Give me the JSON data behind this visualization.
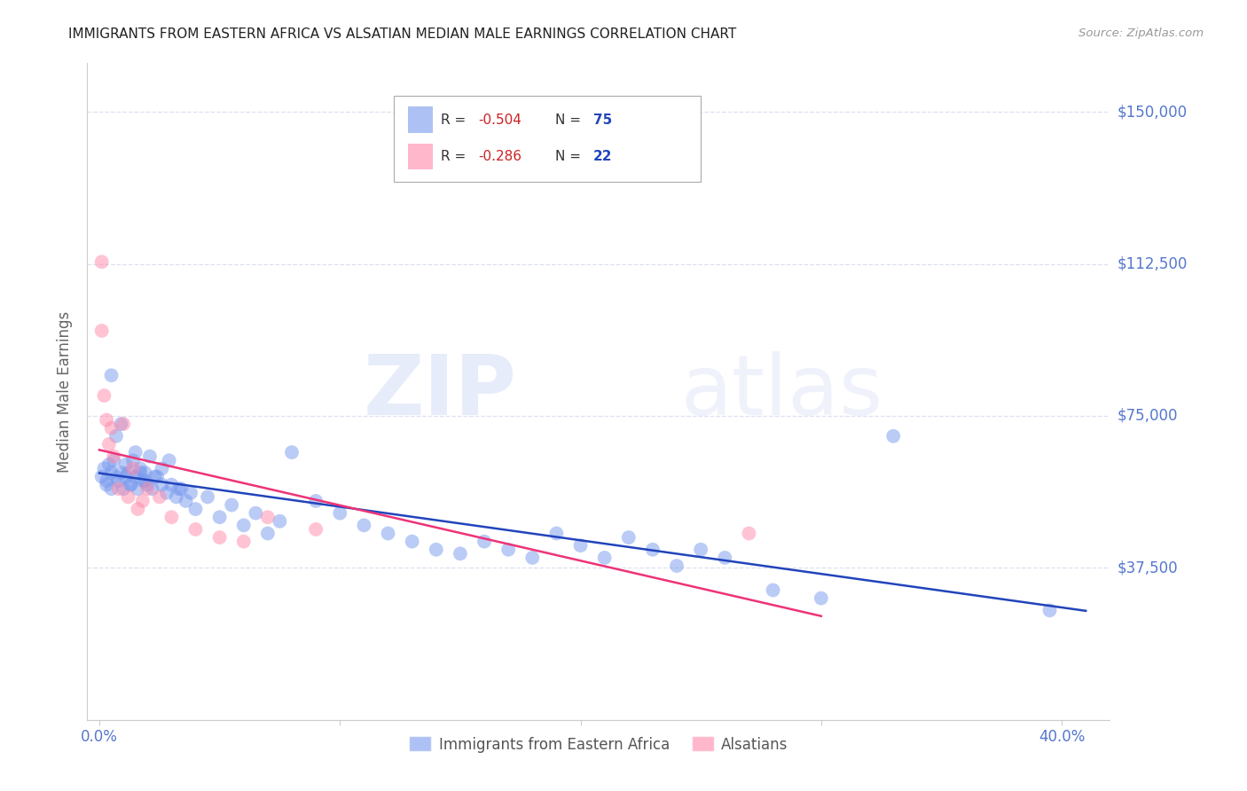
{
  "title": "IMMIGRANTS FROM EASTERN AFRICA VS ALSATIAN MEDIAN MALE EARNINGS CORRELATION CHART",
  "source": "Source: ZipAtlas.com",
  "ylabel": "Median Male Earnings",
  "ylim": [
    0,
    162000
  ],
  "xlim": [
    -0.005,
    0.42
  ],
  "background_color": "#ffffff",
  "grid_color": "#dde0f0",
  "blue_color": "#7799ee",
  "pink_color": "#ff88aa",
  "blue_line_color": "#2244bb",
  "pink_line_color": "#ee3377",
  "axis_color": "#5577cc",
  "legend_label1": "Immigrants from Eastern Africa",
  "legend_label2": "Alsatians",
  "watermark_zip": "ZIP",
  "watermark_atlas": "atlas",
  "blue_x": [
    0.001,
    0.002,
    0.003,
    0.004,
    0.005,
    0.005,
    0.006,
    0.007,
    0.008,
    0.009,
    0.01,
    0.011,
    0.012,
    0.013,
    0.014,
    0.015,
    0.016,
    0.017,
    0.018,
    0.019,
    0.02,
    0.022,
    0.024,
    0.026,
    0.028,
    0.03,
    0.032,
    0.034,
    0.036,
    0.038,
    0.04,
    0.045,
    0.05,
    0.055,
    0.06,
    0.065,
    0.07,
    0.075,
    0.08,
    0.09,
    0.1,
    0.11,
    0.12,
    0.13,
    0.14,
    0.15,
    0.16,
    0.17,
    0.18,
    0.19,
    0.2,
    0.21,
    0.22,
    0.23,
    0.24,
    0.25,
    0.26,
    0.28,
    0.3,
    0.33,
    0.003,
    0.005,
    0.007,
    0.009,
    0.011,
    0.013,
    0.015,
    0.017,
    0.019,
    0.021,
    0.023,
    0.026,
    0.029,
    0.033,
    0.395
  ],
  "blue_y": [
    60000,
    62000,
    59000,
    63000,
    61000,
    57000,
    64000,
    60000,
    59000,
    61000,
    57000,
    63000,
    61000,
    58000,
    64000,
    60000,
    57000,
    62000,
    59000,
    61000,
    58000,
    57000,
    60000,
    58000,
    56000,
    58000,
    55000,
    57000,
    54000,
    56000,
    52000,
    55000,
    50000,
    53000,
    48000,
    51000,
    46000,
    49000,
    66000,
    54000,
    51000,
    48000,
    46000,
    44000,
    42000,
    41000,
    44000,
    42000,
    40000,
    46000,
    43000,
    40000,
    45000,
    42000,
    38000,
    42000,
    40000,
    32000,
    30000,
    70000,
    58000,
    85000,
    70000,
    73000,
    60000,
    58000,
    66000,
    61000,
    59000,
    65000,
    60000,
    62000,
    64000,
    57000,
    27000
  ],
  "pink_x": [
    0.001,
    0.002,
    0.003,
    0.004,
    0.005,
    0.006,
    0.008,
    0.01,
    0.012,
    0.014,
    0.016,
    0.018,
    0.02,
    0.025,
    0.03,
    0.04,
    0.05,
    0.06,
    0.07,
    0.09,
    0.27,
    0.001
  ],
  "pink_y": [
    113000,
    80000,
    74000,
    68000,
    72000,
    65000,
    57000,
    73000,
    55000,
    62000,
    52000,
    54000,
    57000,
    55000,
    50000,
    47000,
    45000,
    44000,
    50000,
    47000,
    46000,
    96000
  ]
}
